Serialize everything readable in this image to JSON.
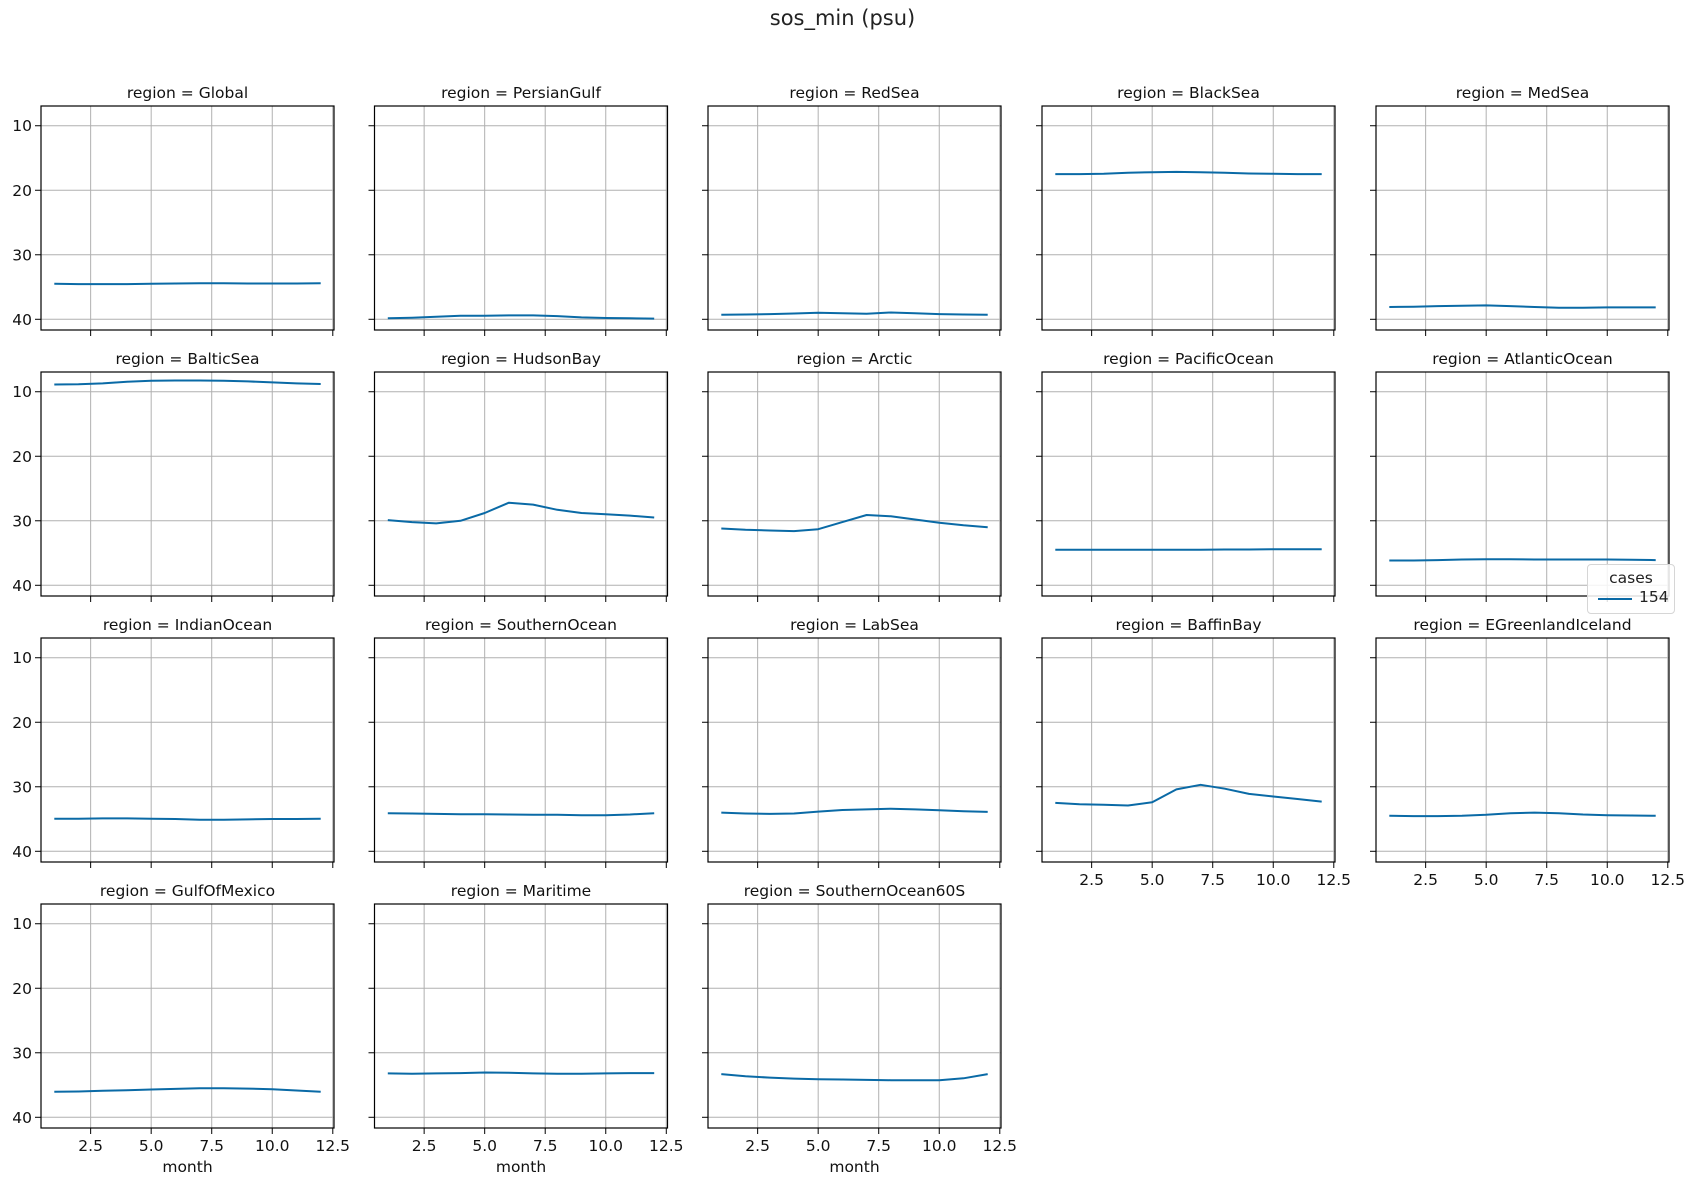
{
  "figure": {
    "title": "sos_min (psu)",
    "line_color": "#0a6aa6",
    "grid_color": "#b0b0b0"
  },
  "legend": {
    "title": "cases",
    "entries": [
      {
        "label": "154",
        "color": "#0a6aa6"
      }
    ]
  },
  "chart_data": {
    "type": "line",
    "title": "sos_min (psu)",
    "xlabel": "month",
    "ylabel": "",
    "x": [
      1,
      2,
      3,
      4,
      5,
      6,
      7,
      8,
      9,
      10,
      11,
      12
    ],
    "xlim": [
      0.45,
      12.55
    ],
    "ylim": [
      41.66,
      6.94
    ],
    "y_inverted": true,
    "xticks": [
      2.5,
      5.0,
      7.5,
      10.0,
      12.5
    ],
    "xtick_labels": [
      "2.5",
      "5.0",
      "7.5",
      "10.0",
      "12.5"
    ],
    "yticks": [
      10,
      20,
      30,
      40
    ],
    "ytick_labels": [
      "10",
      "20",
      "30",
      "40"
    ],
    "grid": true,
    "legend_position": "right",
    "legend_title": "cases",
    "series_name": "154",
    "panels": [
      {
        "title": "region = Global",
        "values": [
          34.5,
          34.55,
          34.55,
          34.55,
          34.5,
          34.45,
          34.4,
          34.4,
          34.45,
          34.45,
          34.45,
          34.4
        ]
      },
      {
        "title": "region = PersianGulf",
        "values": [
          39.85,
          39.75,
          39.6,
          39.45,
          39.45,
          39.4,
          39.4,
          39.5,
          39.7,
          39.8,
          39.85,
          39.9
        ]
      },
      {
        "title": "region = RedSea",
        "values": [
          39.3,
          39.25,
          39.2,
          39.1,
          39.0,
          39.05,
          39.15,
          38.95,
          39.05,
          39.2,
          39.25,
          39.3
        ]
      },
      {
        "title": "region = BlackSea",
        "values": [
          17.5,
          17.5,
          17.45,
          17.3,
          17.2,
          17.15,
          17.2,
          17.3,
          17.4,
          17.45,
          17.5,
          17.5
        ]
      },
      {
        "title": "region = MedSea",
        "values": [
          38.1,
          38.05,
          37.95,
          37.9,
          37.85,
          37.95,
          38.1,
          38.2,
          38.2,
          38.15,
          38.15,
          38.15
        ]
      },
      {
        "title": "region = BalticSea",
        "values": [
          8.87,
          8.85,
          8.7,
          8.45,
          8.3,
          8.25,
          8.25,
          8.3,
          8.4,
          8.55,
          8.7,
          8.8
        ]
      },
      {
        "title": "region = HudsonBay",
        "values": [
          29.9,
          30.2,
          30.4,
          30.0,
          28.8,
          27.2,
          27.5,
          28.3,
          28.8,
          29.0,
          29.2,
          29.5
        ]
      },
      {
        "title": "region = Arctic",
        "values": [
          31.2,
          31.4,
          31.5,
          31.6,
          31.3,
          30.2,
          29.1,
          29.3,
          29.8,
          30.3,
          30.7,
          31.0
        ]
      },
      {
        "title": "region = PacificOcean",
        "values": [
          34.5,
          34.5,
          34.5,
          34.5,
          34.5,
          34.5,
          34.5,
          34.45,
          34.45,
          34.4,
          34.4,
          34.4
        ]
      },
      {
        "title": "region = AtlanticOcean",
        "values": [
          36.15,
          36.15,
          36.1,
          36.0,
          35.95,
          35.96,
          36.0,
          36.0,
          36.0,
          36.0,
          36.05,
          36.1
        ]
      },
      {
        "title": "region = IndianOcean",
        "values": [
          34.95,
          34.95,
          34.9,
          34.9,
          34.95,
          35.0,
          35.1,
          35.1,
          35.05,
          35.0,
          35.0,
          34.95
        ]
      },
      {
        "title": "region = SouthernOcean",
        "values": [
          34.1,
          34.15,
          34.2,
          34.25,
          34.25,
          34.3,
          34.35,
          34.35,
          34.4,
          34.4,
          34.3,
          34.1
        ]
      },
      {
        "title": "region = LabSea",
        "values": [
          34.0,
          34.15,
          34.2,
          34.15,
          33.85,
          33.6,
          33.5,
          33.4,
          33.5,
          33.65,
          33.8,
          33.9
        ]
      },
      {
        "title": "region = BaffinBay",
        "values": [
          32.5,
          32.7,
          32.8,
          32.9,
          32.4,
          30.4,
          29.7,
          30.3,
          31.1,
          31.5,
          31.9,
          32.3
        ]
      },
      {
        "title": "region = EGreenlandIceland",
        "values": [
          34.5,
          34.55,
          34.55,
          34.5,
          34.35,
          34.1,
          34.0,
          34.1,
          34.3,
          34.4,
          34.45,
          34.5
        ]
      },
      {
        "title": "region = GulfOfMexico",
        "values": [
          36.05,
          36.0,
          35.9,
          35.8,
          35.7,
          35.6,
          35.5,
          35.5,
          35.55,
          35.65,
          35.85,
          36.05
        ]
      },
      {
        "title": "region = Maritime",
        "values": [
          33.2,
          33.25,
          33.2,
          33.15,
          33.05,
          33.1,
          33.2,
          33.25,
          33.25,
          33.2,
          33.15,
          33.15
        ]
      },
      {
        "title": "region = SouthernOcean60S",
        "values": [
          33.3,
          33.65,
          33.85,
          34.0,
          34.1,
          34.15,
          34.2,
          34.25,
          34.25,
          34.25,
          33.95,
          33.3
        ]
      }
    ]
  }
}
